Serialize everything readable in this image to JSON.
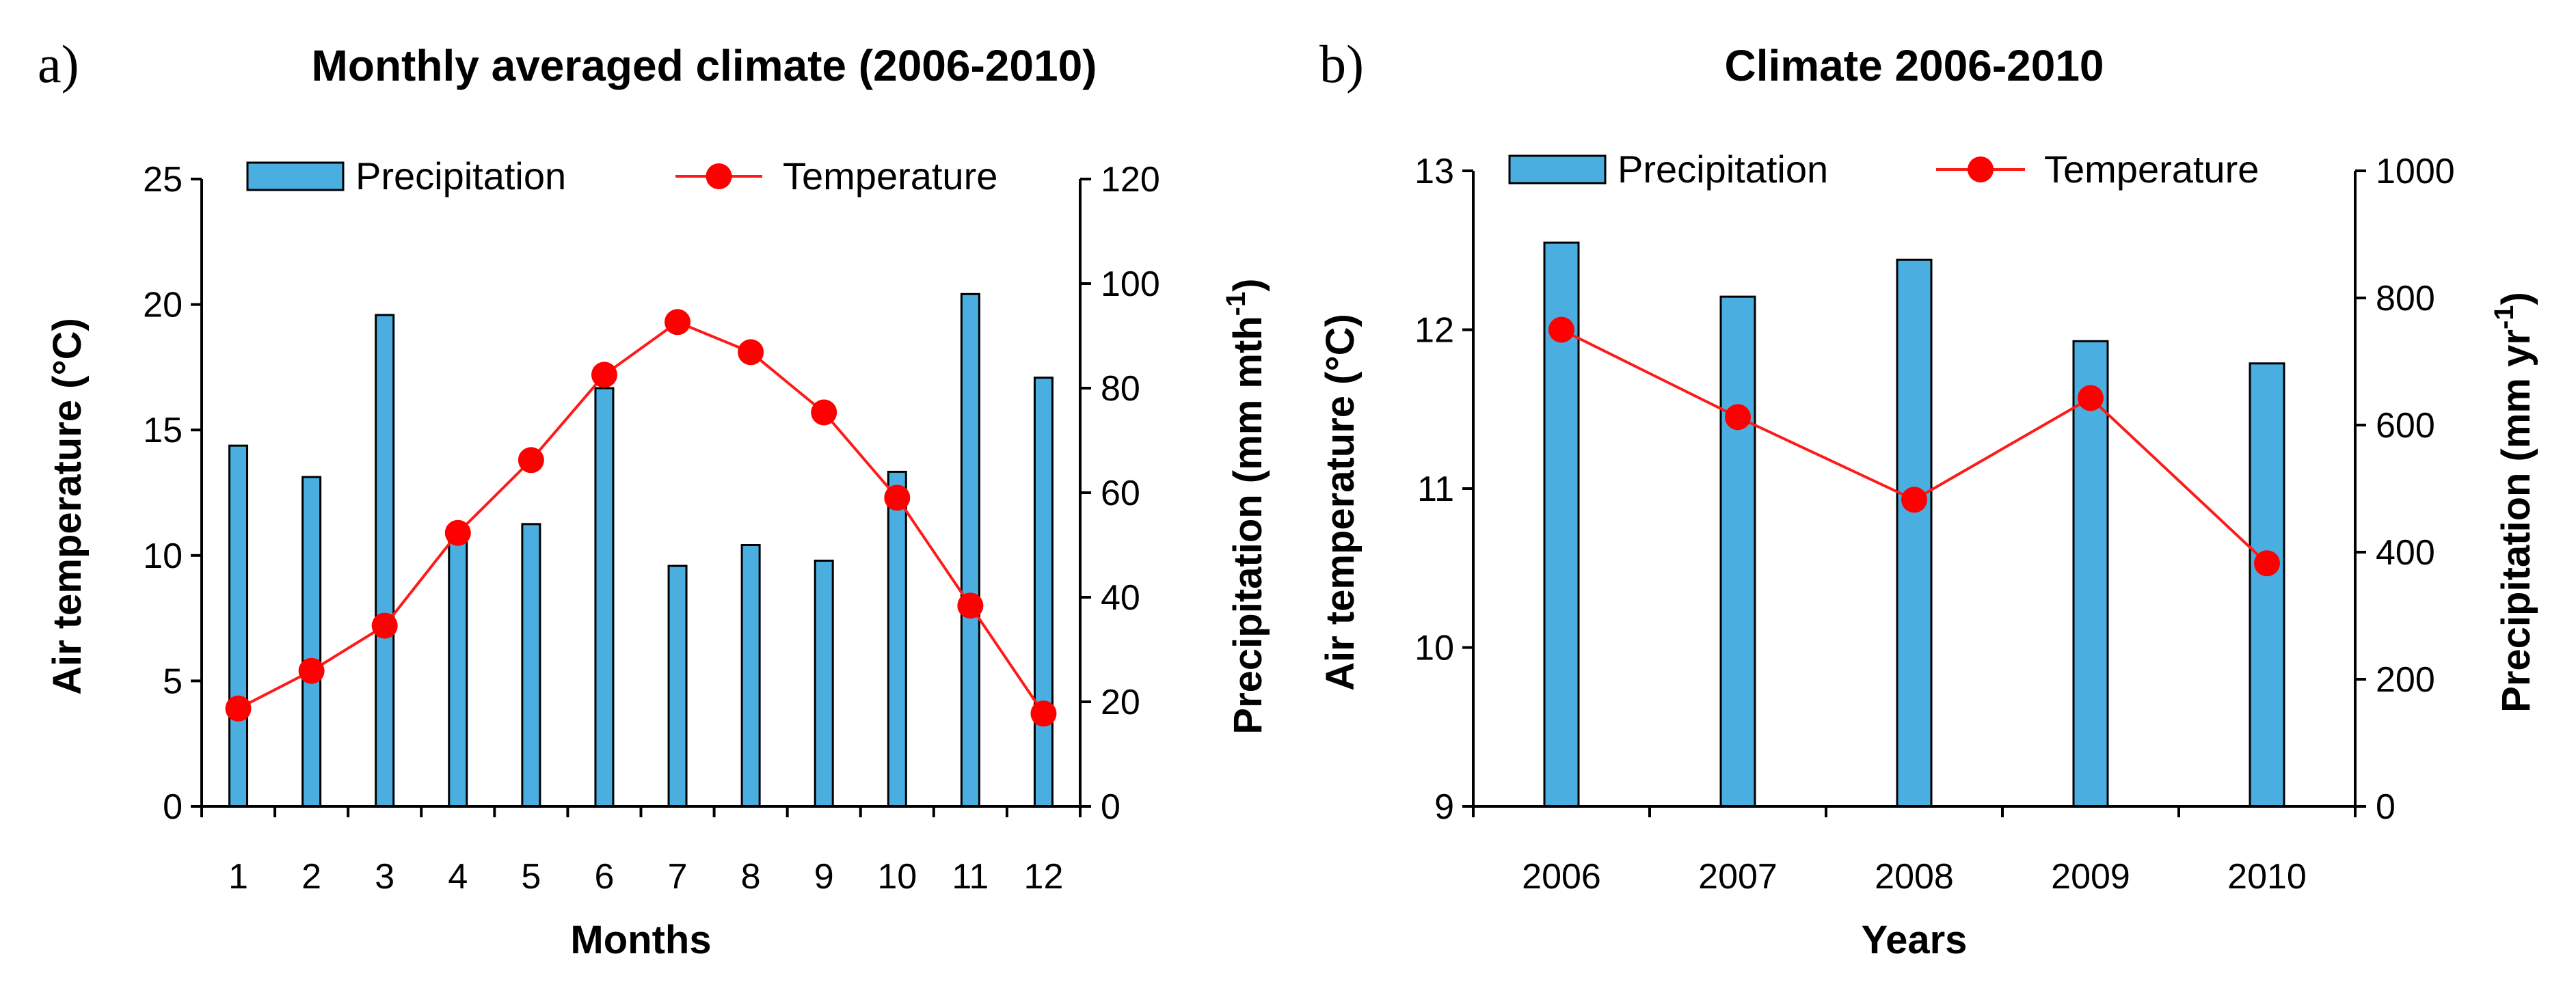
{
  "colors": {
    "bar_fill": "#4aafe0",
    "bar_stroke": "#000000",
    "line": "#ff1a1a",
    "marker": "#ff0000",
    "axis": "#000000"
  },
  "chart_data": [
    {
      "panel_label": "a)",
      "type": "bar+line",
      "title": "Monthly averaged climate (2006-2010)",
      "xlabel": "Months",
      "ylabel_left": "Air temperature (°C)",
      "ylabel_right": "Precipitation (mm mth⁻¹)",
      "ylabel_right_base": "Precipitation (mm mth",
      "ylabel_right_sup": "-1",
      "ylabel_right_close": ")",
      "categories": [
        "1",
        "2",
        "3",
        "4",
        "5",
        "6",
        "7",
        "8",
        "9",
        "10",
        "11",
        "12"
      ],
      "left_axis": {
        "min": 0,
        "max": 25,
        "ticks": [
          "0",
          "5",
          "10",
          "15",
          "20",
          "25"
        ]
      },
      "right_axis": {
        "min": 0,
        "max": 120,
        "ticks": [
          "0",
          "20",
          "40",
          "60",
          "80",
          "100",
          "120"
        ]
      },
      "series": [
        {
          "name": "Precipitation",
          "kind": "bar",
          "axis": "right",
          "values": [
            69,
            63,
            94,
            52,
            54,
            80,
            46,
            50,
            47,
            64,
            98,
            82
          ]
        },
        {
          "name": "Temperature",
          "kind": "line",
          "axis": "left",
          "values": [
            3.9,
            5.4,
            7.2,
            10.9,
            13.8,
            17.2,
            19.3,
            18.1,
            15.7,
            12.3,
            8.0,
            3.7
          ]
        }
      ],
      "legend": {
        "position": "top",
        "entries": [
          "Precipitation",
          "Temperature"
        ]
      }
    },
    {
      "panel_label": "b)",
      "type": "bar+line",
      "title": "Climate 2006-2010",
      "xlabel": "Years",
      "ylabel_left": "Air temperature (°C)",
      "ylabel_right": "Precipitation (mm yr⁻¹)",
      "ylabel_right_base": "Precipitation (mm yr",
      "ylabel_right_sup": "-1",
      "ylabel_right_close": ")",
      "categories": [
        "2006",
        "2007",
        "2008",
        "2009",
        "2010"
      ],
      "left_axis": {
        "min": 9,
        "max": 13,
        "ticks": [
          "9",
          "10",
          "11",
          "12",
          "13"
        ]
      },
      "right_axis": {
        "min": 0,
        "max": 1000,
        "ticks": [
          "0",
          "200",
          "400",
          "600",
          "800",
          "1000"
        ]
      },
      "series": [
        {
          "name": "Precipitation",
          "kind": "bar",
          "axis": "right",
          "values": [
            887,
            802,
            860,
            732,
            697
          ]
        },
        {
          "name": "Temperature",
          "kind": "line",
          "axis": "left",
          "values": [
            12.0,
            11.45,
            10.93,
            11.57,
            10.53
          ]
        }
      ],
      "legend": {
        "position": "top",
        "entries": [
          "Precipitation",
          "Temperature"
        ]
      }
    }
  ]
}
